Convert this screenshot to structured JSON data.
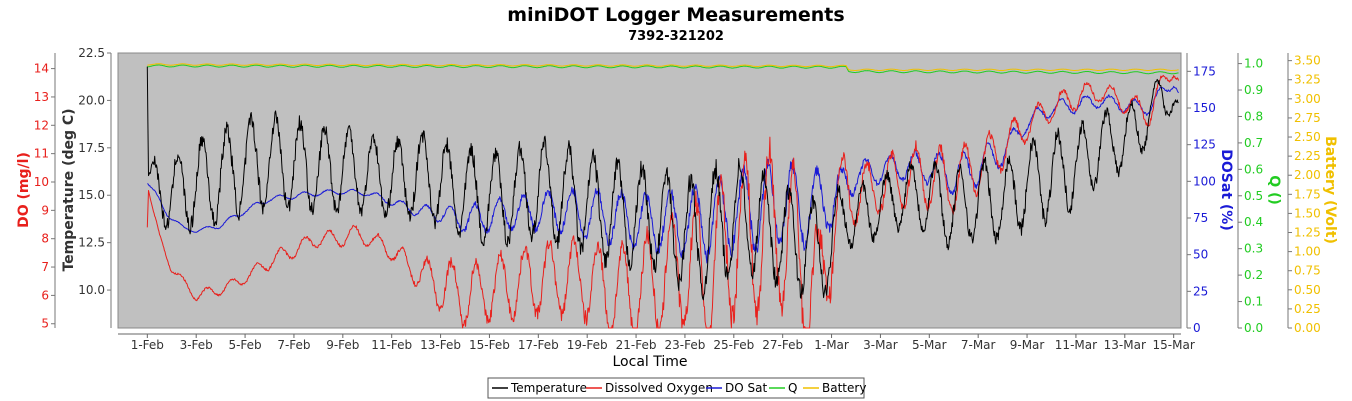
{
  "chart_data": {
    "type": "line",
    "title": "miniDOT Logger Measurements",
    "subtitle": "7392-321202",
    "xlabel": "Local Time",
    "x_ticks": [
      "1-Feb",
      "3-Feb",
      "5-Feb",
      "7-Feb",
      "9-Feb",
      "11-Feb",
      "13-Feb",
      "15-Feb",
      "17-Feb",
      "19-Feb",
      "21-Feb",
      "23-Feb",
      "25-Feb",
      "27-Feb",
      "1-Mar",
      "3-Mar",
      "5-Mar",
      "7-Mar",
      "9-Mar",
      "11-Mar",
      "13-Mar",
      "15-Mar"
    ],
    "x_range_days": [
      -1.2,
      42.3
    ],
    "axes": {
      "do": {
        "label": "DO (mg/l)",
        "color": "#e8201c",
        "range": [
          4.85,
          14.55
        ],
        "ticks": [
          "5",
          "6",
          "7",
          "8",
          "9",
          "10",
          "11",
          "12",
          "13",
          "14"
        ]
      },
      "temp": {
        "label": "Temperature (deg C)",
        "color": "#333333",
        "range": [
          8.0,
          22.5
        ],
        "ticks": [
          "10.0",
          "12.5",
          "15.0",
          "17.5",
          "20.0",
          "22.5"
        ]
      },
      "dosat": {
        "label": "DOSat (%)",
        "color": "#1a1ad6",
        "range": [
          0,
          187.5
        ],
        "ticks": [
          "0",
          "25",
          "50",
          "75",
          "100",
          "125",
          "150",
          "175"
        ]
      },
      "q": {
        "label": "Q ()",
        "color": "#22cc22",
        "range": [
          0,
          1.04
        ],
        "ticks": [
          "0.0",
          "0.1",
          "0.2",
          "0.3",
          "0.4",
          "0.5",
          "0.6",
          "0.7",
          "0.8",
          "0.9",
          "1.0"
        ]
      },
      "battery": {
        "label": "Battery (Volt)",
        "color": "#f0c000",
        "range": [
          0,
          3.6
        ],
        "ticks": [
          "0.00",
          "0.25",
          "0.50",
          "0.75",
          "1.00",
          "1.25",
          "1.50",
          "1.75",
          "2.00",
          "2.25",
          "2.50",
          "2.75",
          "3.00",
          "3.25",
          "3.50"
        ]
      }
    },
    "series": [
      {
        "name": "Temperature",
        "color": "#000000",
        "axis": "temp",
        "x": [
          0.0,
          0.05,
          0.3,
          1.0,
          2.0,
          3.0,
          4.0,
          5.0,
          6.0,
          7.0,
          8.0,
          9.0,
          10.0,
          11.0,
          11.5,
          12.0,
          13.0,
          14.0,
          15.0,
          16.0,
          17.0,
          18.0,
          19.0,
          20.0,
          21.0,
          22.0,
          22.5,
          23.0,
          24.0,
          25.0,
          26.0,
          27.0,
          27.5,
          28.0,
          28.6,
          29.0,
          30.0,
          31.0,
          32.0,
          33.0,
          34.0,
          35.0,
          36.0,
          37.0,
          38.0,
          39.0,
          40.0,
          41.0,
          41.5,
          42.0,
          42.2
        ],
        "y": [
          21.8,
          15.8,
          15.5,
          15.0,
          15.6,
          16.0,
          16.6,
          16.8,
          16.6,
          16.3,
          16.4,
          16.2,
          15.8,
          16.0,
          16.2,
          15.5,
          15.2,
          14.8,
          15.0,
          15.3,
          15.0,
          14.6,
          14.0,
          14.0,
          13.6,
          13.0,
          12.6,
          13.2,
          13.8,
          13.6,
          12.8,
          12.4,
          12.0,
          12.3,
          14.5,
          13.6,
          14.5,
          15.0,
          15.0,
          14.2,
          14.8,
          14.6,
          15.6,
          16.0,
          16.5,
          17.6,
          18.0,
          19.0,
          20.5,
          19.8,
          19.5
        ],
        "swing": [
          0.6,
          0.6,
          1.6,
          2.2,
          2.5,
          2.6,
          2.6,
          2.6,
          2.6,
          2.4,
          2.4,
          2.2,
          2.2,
          2.3,
          2.4,
          2.5,
          2.5,
          2.6,
          2.6,
          2.7,
          2.8,
          2.8,
          2.9,
          2.8,
          2.8,
          3.2,
          3.4,
          3.4,
          3.2,
          3.0,
          2.8,
          2.8,
          2.6,
          2.6,
          2.0,
          2.0,
          1.6,
          1.8,
          2.0,
          2.2,
          2.2,
          2.2,
          2.4,
          2.4,
          2.2,
          2.0,
          1.8,
          1.4,
          1.2,
          0.8,
          0.5
        ]
      },
      {
        "name": "Dissolved Oxygen",
        "color": "#e8201c",
        "axis": "do",
        "x": [
          0.0,
          0.05,
          0.5,
          1.0,
          1.5,
          2.0,
          3.0,
          4.0,
          5.0,
          6.0,
          7.0,
          8.0,
          8.5,
          9.0,
          10.0,
          11.0,
          12.0,
          13.0,
          14.0,
          15.0,
          16.0,
          17.0,
          18.0,
          19.0,
          20.0,
          21.0,
          22.0,
          23.0,
          24.0,
          25.0,
          26.0,
          27.0,
          27.5,
          28.0,
          28.5,
          29.0,
          30.0,
          31.0,
          32.0,
          33.0,
          34.0,
          35.0,
          36.0,
          37.0,
          38.0,
          39.0,
          40.0,
          41.0,
          41.5,
          42.0,
          42.2
        ],
        "y": [
          8.4,
          9.7,
          8.0,
          7.0,
          6.4,
          6.0,
          6.2,
          6.6,
          7.2,
          7.6,
          8.0,
          8.0,
          8.2,
          8.0,
          7.6,
          6.8,
          6.4,
          6.0,
          6.2,
          6.4,
          6.6,
          6.6,
          6.6,
          6.1,
          6.2,
          6.6,
          7.0,
          6.8,
          8.0,
          8.2,
          8.4,
          6.8,
          5.8,
          8.6,
          9.7,
          9.6,
          9.8,
          10.2,
          10.2,
          10.0,
          10.6,
          11.2,
          12.0,
          12.6,
          13.0,
          13.2,
          12.8,
          12.4,
          13.4,
          14.0,
          13.6
        ],
        "swing": [
          0.0,
          0.0,
          0.2,
          0.2,
          0.2,
          0.2,
          0.2,
          0.2,
          0.3,
          0.3,
          0.3,
          0.3,
          0.3,
          0.3,
          0.4,
          0.5,
          1.0,
          1.2,
          1.2,
          1.3,
          1.4,
          1.4,
          1.6,
          1.6,
          1.8,
          2.2,
          2.4,
          2.8,
          3.0,
          3.2,
          3.0,
          3.0,
          2.6,
          2.4,
          1.4,
          1.2,
          1.0,
          1.2,
          1.2,
          1.2,
          1.0,
          0.8,
          0.6,
          0.5,
          0.5,
          0.4,
          0.4,
          0.5,
          0.4,
          0.3,
          0.2
        ]
      },
      {
        "name": "DO Sat",
        "color": "#1a1ad6",
        "axis": "dosat",
        "x": [
          0.0,
          0.3,
          0.8,
          1.5,
          2.0,
          3.0,
          4.0,
          5.0,
          6.0,
          7.0,
          8.0,
          9.0,
          10.0,
          11.0,
          12.0,
          13.0,
          14.0,
          15.0,
          16.0,
          17.0,
          18.0,
          19.0,
          20.0,
          21.0,
          22.0,
          23.0,
          24.0,
          25.0,
          26.0,
          27.0,
          28.0,
          28.5,
          29.0,
          30.0,
          31.0,
          32.0,
          33.0,
          34.0,
          35.0,
          36.0,
          37.0,
          38.0,
          39.0,
          40.0,
          41.0,
          41.5,
          42.0,
          42.2
        ],
        "y": [
          100,
          92,
          78,
          68,
          66,
          70,
          80,
          88,
          90,
          92,
          93,
          92,
          86,
          80,
          78,
          74,
          76,
          78,
          80,
          80,
          78,
          76,
          72,
          72,
          72,
          74,
          80,
          82,
          86,
          82,
          88,
          95,
          104,
          108,
          110,
          110,
          104,
          110,
          120,
          140,
          150,
          152,
          155,
          152,
          150,
          160,
          168,
          160
        ],
        "swing": [
          2,
          2,
          2,
          1,
          1,
          2,
          2,
          2,
          2,
          2,
          2,
          2,
          3,
          4,
          6,
          10,
          12,
          12,
          14,
          16,
          18,
          20,
          20,
          22,
          24,
          28,
          30,
          32,
          30,
          28,
          22,
          16,
          10,
          10,
          10,
          12,
          14,
          14,
          10,
          6,
          6,
          6,
          5,
          5,
          5,
          5,
          4,
          3
        ]
      },
      {
        "name": "Q",
        "color": "#22cc22",
        "axis": "q",
        "x": [
          0.0,
          28.6,
          28.7,
          42.2
        ],
        "y": [
          0.991,
          0.986,
          0.97,
          0.965
        ],
        "swing": [
          0.004,
          0.004,
          0.004,
          0.004
        ]
      },
      {
        "name": "Battery",
        "color": "#f0c000",
        "axis": "battery",
        "x": [
          0.0,
          14.0,
          28.6,
          28.7,
          42.2
        ],
        "y": [
          3.45,
          3.44,
          3.43,
          3.38,
          3.38
        ],
        "swing": [
          0.01,
          0.01,
          0.01,
          0.01,
          0.01
        ]
      }
    ],
    "background": "#c0c0c0",
    "grid": false,
    "legend": {
      "position": "bottom",
      "items": [
        "Temperature",
        "Dissolved Oxygen",
        "DO Sat",
        "Q",
        "Battery"
      ]
    }
  }
}
